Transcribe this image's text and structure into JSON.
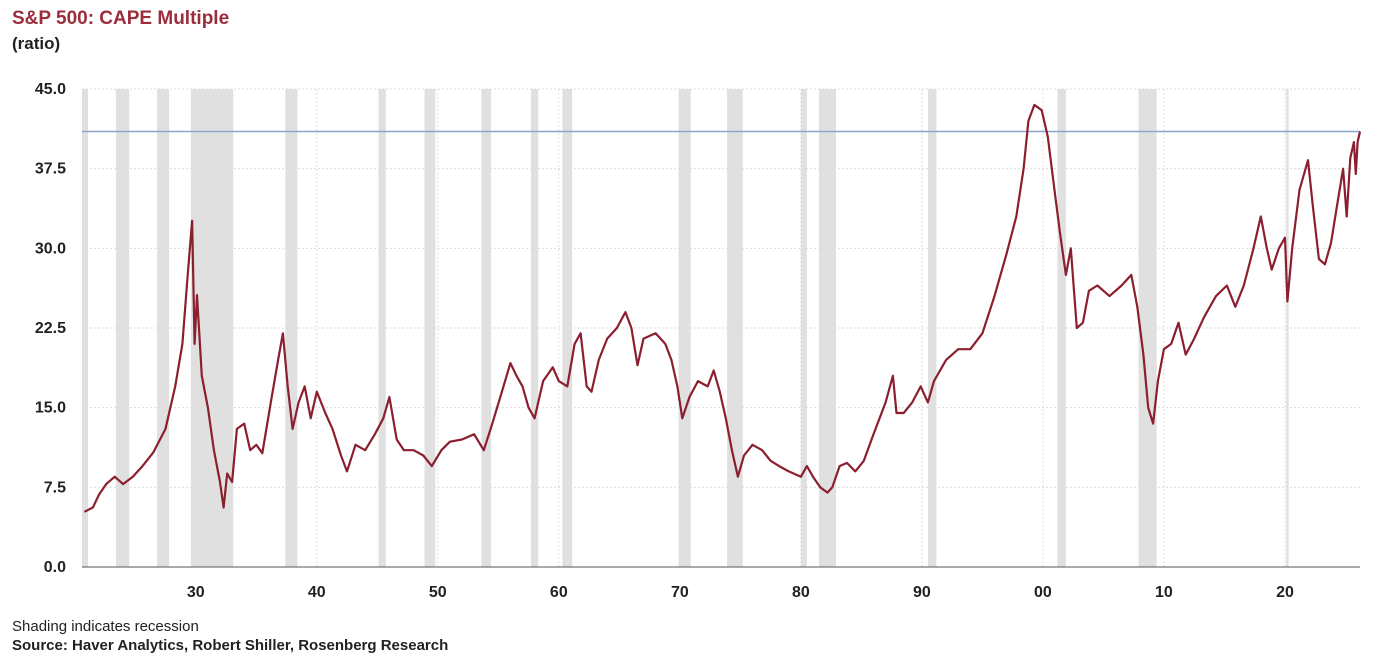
{
  "header": {
    "title": "S&P 500: CAPE Multiple",
    "subtitle": "(ratio)"
  },
  "footer": {
    "note": "Shading indicates recession",
    "source": "Source: Haver Analytics, Robert Shiller, Rosenberg Research"
  },
  "chart_data": {
    "type": "line",
    "title": "S&P 500: CAPE Multiple",
    "ylabel": "(ratio)",
    "xlabel": "",
    "ylim": [
      0,
      45
    ],
    "xlim": [
      1920.6,
      2026.2
    ],
    "y_ticks": [
      "0.0",
      "7.5",
      "15.0",
      "22.5",
      "30.0",
      "37.5",
      "45.0"
    ],
    "x_ticks": [
      {
        "year": 1930,
        "label": "30"
      },
      {
        "year": 1940,
        "label": "40"
      },
      {
        "year": 1950,
        "label": "50"
      },
      {
        "year": 1960,
        "label": "60"
      },
      {
        "year": 1970,
        "label": "70"
      },
      {
        "year": 1980,
        "label": "80"
      },
      {
        "year": 1990,
        "label": "90"
      },
      {
        "year": 2000,
        "label": "00"
      },
      {
        "year": 2010,
        "label": "10"
      },
      {
        "year": 2020,
        "label": "20"
      }
    ],
    "reference_line": 41.0,
    "grid": true,
    "colors": {
      "line": "#8b1f2f",
      "recession": "#e0e0e0",
      "reference": "#8aa6c8",
      "grid": "#dddddd"
    },
    "recessions": [
      [
        1920.6,
        1921.1
      ],
      [
        1923.4,
        1924.5
      ],
      [
        1926.8,
        1927.8
      ],
      [
        1929.6,
        1933.1
      ],
      [
        1937.4,
        1938.4
      ],
      [
        1945.1,
        1945.7
      ],
      [
        1948.9,
        1949.8
      ],
      [
        1953.6,
        1954.4
      ],
      [
        1957.7,
        1958.3
      ],
      [
        1960.3,
        1961.1
      ],
      [
        1969.9,
        1970.9
      ],
      [
        1973.9,
        1975.2
      ],
      [
        1980.0,
        1980.5
      ],
      [
        1981.5,
        1982.9
      ],
      [
        1990.5,
        1991.2
      ],
      [
        2001.2,
        2001.9
      ],
      [
        2007.9,
        2009.4
      ],
      [
        2020.1,
        2020.3
      ]
    ],
    "series": [
      {
        "values": [
          [
            1920.8,
            5.2
          ],
          [
            1921.5,
            5.6
          ],
          [
            1922.0,
            6.8
          ],
          [
            1922.6,
            7.8
          ],
          [
            1923.3,
            8.5
          ],
          [
            1924.0,
            7.8
          ],
          [
            1924.8,
            8.5
          ],
          [
            1925.6,
            9.5
          ],
          [
            1926.5,
            10.8
          ],
          [
            1927.5,
            13.0
          ],
          [
            1928.3,
            17.0
          ],
          [
            1928.9,
            21.0
          ],
          [
            1929.3,
            27.0
          ],
          [
            1929.7,
            32.6
          ],
          [
            1929.9,
            21.0
          ],
          [
            1930.1,
            25.6
          ],
          [
            1930.5,
            18.0
          ],
          [
            1931.0,
            15.0
          ],
          [
            1931.5,
            11.0
          ],
          [
            1932.0,
            8.0
          ],
          [
            1932.3,
            5.6
          ],
          [
            1932.6,
            8.8
          ],
          [
            1933.0,
            8.0
          ],
          [
            1933.4,
            13.0
          ],
          [
            1934.0,
            13.5
          ],
          [
            1934.5,
            11.0
          ],
          [
            1935.0,
            11.5
          ],
          [
            1935.5,
            10.7
          ],
          [
            1936.2,
            15.5
          ],
          [
            1936.8,
            19.5
          ],
          [
            1937.2,
            22.0
          ],
          [
            1937.6,
            17.0
          ],
          [
            1938.0,
            13.0
          ],
          [
            1938.5,
            15.5
          ],
          [
            1939.0,
            17.0
          ],
          [
            1939.5,
            14.0
          ],
          [
            1940.0,
            16.5
          ],
          [
            1940.7,
            14.5
          ],
          [
            1941.3,
            13.0
          ],
          [
            1942.0,
            10.5
          ],
          [
            1942.5,
            9.0
          ],
          [
            1943.2,
            11.5
          ],
          [
            1944.0,
            11.0
          ],
          [
            1944.8,
            12.5
          ],
          [
            1945.5,
            14.0
          ],
          [
            1946.0,
            16.0
          ],
          [
            1946.6,
            12.0
          ],
          [
            1947.2,
            11.0
          ],
          [
            1948.0,
            11.0
          ],
          [
            1948.8,
            10.5
          ],
          [
            1949.5,
            9.5
          ],
          [
            1950.3,
            11.0
          ],
          [
            1951.0,
            11.8
          ],
          [
            1952.0,
            12.0
          ],
          [
            1953.0,
            12.5
          ],
          [
            1953.8,
            11.0
          ],
          [
            1954.5,
            13.5
          ],
          [
            1955.3,
            16.5
          ],
          [
            1956.0,
            19.2
          ],
          [
            1956.5,
            18.0
          ],
          [
            1957.0,
            17.0
          ],
          [
            1957.5,
            15.0
          ],
          [
            1958.0,
            14.0
          ],
          [
            1958.7,
            17.5
          ],
          [
            1959.5,
            18.8
          ],
          [
            1960.0,
            17.5
          ],
          [
            1960.7,
            17.0
          ],
          [
            1961.3,
            21.0
          ],
          [
            1961.8,
            22.0
          ],
          [
            1962.3,
            17.0
          ],
          [
            1962.7,
            16.5
          ],
          [
            1963.3,
            19.5
          ],
          [
            1964.0,
            21.5
          ],
          [
            1964.8,
            22.5
          ],
          [
            1965.5,
            24.0
          ],
          [
            1966.0,
            22.5
          ],
          [
            1966.5,
            19.0
          ],
          [
            1967.0,
            21.5
          ],
          [
            1968.0,
            22.0
          ],
          [
            1968.8,
            21.0
          ],
          [
            1969.3,
            19.5
          ],
          [
            1969.8,
            17.0
          ],
          [
            1970.2,
            14.0
          ],
          [
            1970.8,
            16.0
          ],
          [
            1971.5,
            17.5
          ],
          [
            1972.3,
            17.0
          ],
          [
            1972.8,
            18.5
          ],
          [
            1973.3,
            16.5
          ],
          [
            1973.8,
            14.0
          ],
          [
            1974.3,
            11.0
          ],
          [
            1974.8,
            8.5
          ],
          [
            1975.3,
            10.5
          ],
          [
            1976.0,
            11.5
          ],
          [
            1976.8,
            11.0
          ],
          [
            1977.5,
            10.0
          ],
          [
            1978.2,
            9.5
          ],
          [
            1979.0,
            9.0
          ],
          [
            1980.0,
            8.5
          ],
          [
            1980.5,
            9.5
          ],
          [
            1981.0,
            8.5
          ],
          [
            1981.6,
            7.5
          ],
          [
            1982.2,
            7.0
          ],
          [
            1982.6,
            7.5
          ],
          [
            1983.2,
            9.5
          ],
          [
            1983.8,
            9.8
          ],
          [
            1984.5,
            9.0
          ],
          [
            1985.2,
            10.0
          ],
          [
            1986.0,
            12.5
          ],
          [
            1987.0,
            15.5
          ],
          [
            1987.6,
            18.0
          ],
          [
            1987.9,
            14.5
          ],
          [
            1988.5,
            14.5
          ],
          [
            1989.2,
            15.5
          ],
          [
            1989.9,
            17.0
          ],
          [
            1990.5,
            15.5
          ],
          [
            1991.0,
            17.5
          ],
          [
            1992.0,
            19.5
          ],
          [
            1993.0,
            20.5
          ],
          [
            1994.0,
            20.5
          ],
          [
            1995.0,
            22.0
          ],
          [
            1996.0,
            25.5
          ],
          [
            1997.0,
            29.5
          ],
          [
            1997.8,
            33.0
          ],
          [
            1998.4,
            37.5
          ],
          [
            1998.8,
            42.0
          ],
          [
            1999.3,
            43.5
          ],
          [
            1999.9,
            43.0
          ],
          [
            2000.4,
            40.5
          ],
          [
            2000.9,
            36.0
          ],
          [
            2001.4,
            31.5
          ],
          [
            2001.9,
            27.5
          ],
          [
            2002.3,
            30.0
          ],
          [
            2002.8,
            22.5
          ],
          [
            2003.3,
            23.0
          ],
          [
            2003.8,
            26.0
          ],
          [
            2004.5,
            26.5
          ],
          [
            2005.5,
            25.5
          ],
          [
            2006.5,
            26.5
          ],
          [
            2007.3,
            27.5
          ],
          [
            2007.8,
            24.5
          ],
          [
            2008.3,
            20.0
          ],
          [
            2008.7,
            15.0
          ],
          [
            2009.1,
            13.5
          ],
          [
            2009.5,
            17.5
          ],
          [
            2010.0,
            20.5
          ],
          [
            2010.6,
            21.0
          ],
          [
            2011.2,
            23.0
          ],
          [
            2011.8,
            20.0
          ],
          [
            2012.5,
            21.5
          ],
          [
            2013.3,
            23.5
          ],
          [
            2014.3,
            25.5
          ],
          [
            2015.2,
            26.5
          ],
          [
            2015.9,
            24.5
          ],
          [
            2016.6,
            26.5
          ],
          [
            2017.4,
            30.0
          ],
          [
            2018.0,
            33.0
          ],
          [
            2018.5,
            30.0
          ],
          [
            2018.9,
            28.0
          ],
          [
            2019.5,
            30.0
          ],
          [
            2020.0,
            31.0
          ],
          [
            2020.2,
            25.0
          ],
          [
            2020.6,
            30.0
          ],
          [
            2021.2,
            35.5
          ],
          [
            2021.9,
            38.3
          ],
          [
            2022.3,
            34.0
          ],
          [
            2022.8,
            29.0
          ],
          [
            2023.3,
            28.5
          ],
          [
            2023.8,
            30.5
          ],
          [
            2024.3,
            34.0
          ],
          [
            2024.8,
            37.5
          ],
          [
            2025.1,
            33.0
          ],
          [
            2025.4,
            38.5
          ],
          [
            2025.7,
            40.0
          ],
          [
            2025.85,
            37.0
          ],
          [
            2026.0,
            40.0
          ],
          [
            2026.2,
            41.0
          ]
        ]
      }
    ]
  }
}
